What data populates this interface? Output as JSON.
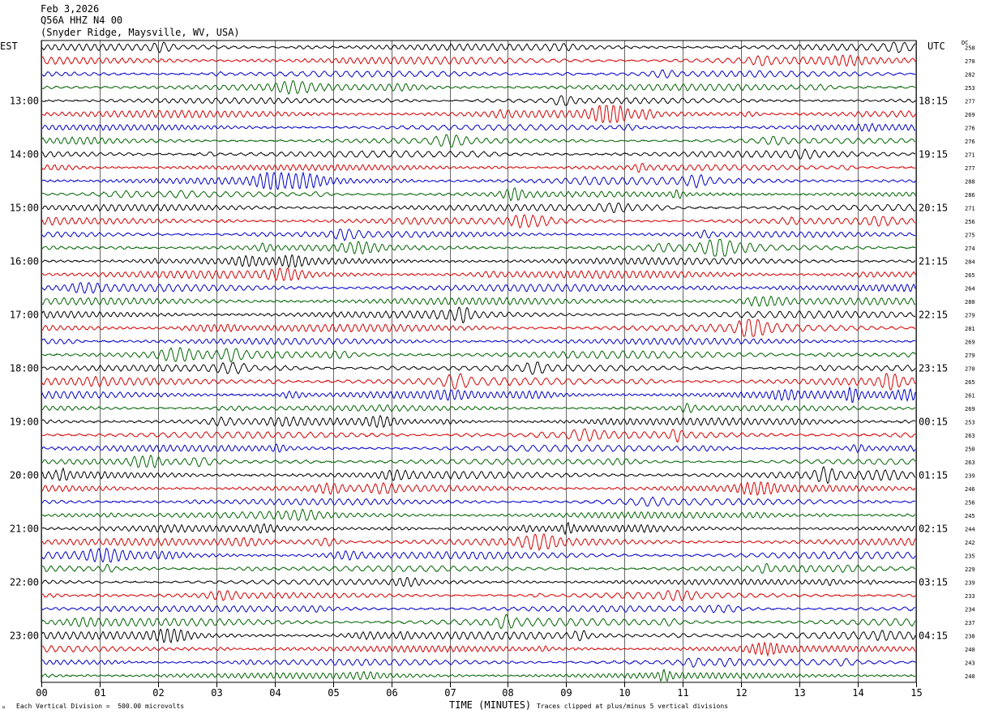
{
  "header": {
    "date": "Feb 3,2026",
    "channel": "Q56A HHZ N4 00",
    "site": "(Snyder Ridge, Maysville, WV, USA)"
  },
  "axes": {
    "left_zone": "EST",
    "right_zone": "UTC",
    "dc_label": "DC"
  },
  "footer": {
    "scale_text": "Each Vertical Division =  500.00 microvolts",
    "xlabel": "TIME (MINUTES)",
    "clip_text": "Traces clipped at plus/minus 5 vertical divisions",
    "corner_mark": "ᴹ"
  },
  "chart_data": {
    "type": "line",
    "title": "Feb 3,2026",
    "xlabel": "TIME (MINUTES)",
    "ylabel": "",
    "xlim": [
      0,
      15
    ],
    "x_ticks": [
      "00",
      "01",
      "02",
      "03",
      "04",
      "05",
      "06",
      "07",
      "08",
      "09",
      "10",
      "11",
      "12",
      "13",
      "14",
      "15"
    ],
    "trace_colors": [
      "#000000",
      "#d40000",
      "#0000c8",
      "#006400"
    ],
    "est_labels": [
      "13:00",
      "14:00",
      "15:00",
      "16:00",
      "17:00",
      "18:00",
      "19:00",
      "20:00",
      "21:00",
      "22:00",
      "23:00"
    ],
    "utc_labels": [
      "18:15",
      "19:15",
      "20:15",
      "21:15",
      "22:15",
      "23:15",
      "00:15",
      "01:15",
      "02:15",
      "03:15",
      "04:15"
    ],
    "dc_offsets": [
      258,
      270,
      282,
      253,
      277,
      269,
      276,
      276,
      271,
      277,
      288,
      286,
      271,
      256,
      275,
      274,
      284,
      265,
      264,
      280,
      279,
      281,
      269,
      279,
      270,
      265,
      261,
      269,
      253,
      263,
      250,
      263,
      239,
      246,
      256,
      245,
      244,
      242,
      235,
      229,
      239,
      233,
      234,
      237,
      238,
      240,
      243,
      240
    ],
    "traces_count": 48,
    "amplitude_division_uV": 500.0
  }
}
